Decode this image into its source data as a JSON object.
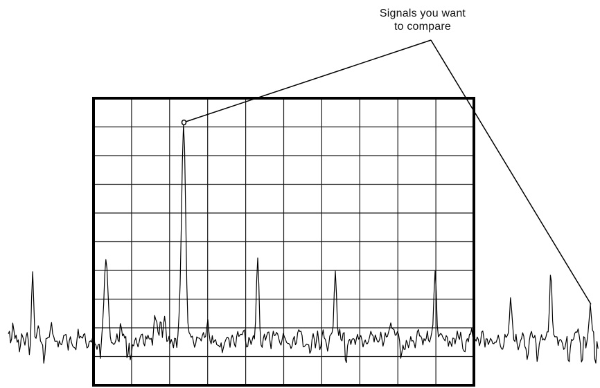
{
  "callout": {
    "line1": "Signals you want",
    "line2": "to compare"
  },
  "colors": {
    "background": "#ffffff",
    "ink": "#000000",
    "grid": "#1a1a1a"
  }
}
